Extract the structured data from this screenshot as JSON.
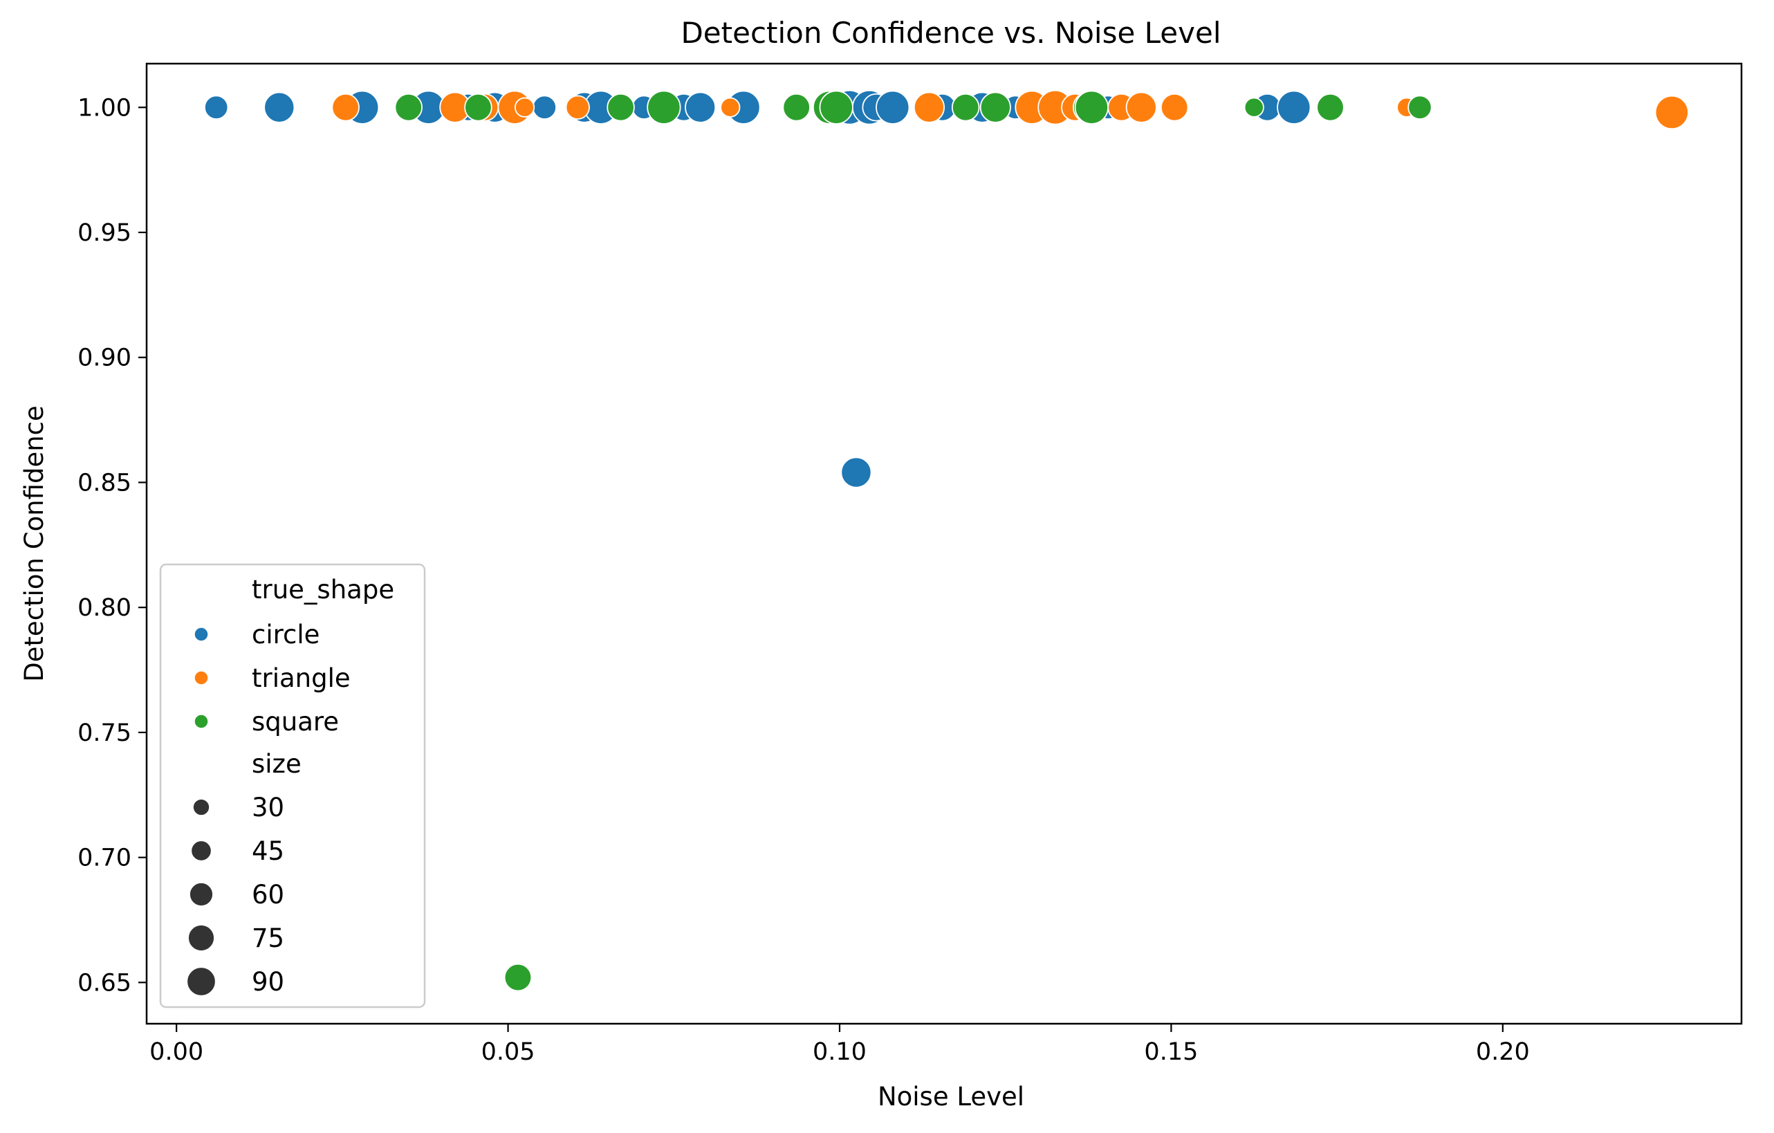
{
  "chart_data": {
    "type": "scatter",
    "title": "Detection Confidence vs. Noise Level",
    "xlabel": "Noise Level",
    "ylabel": "Detection Confidence",
    "xlim": [
      -0.0045,
      0.236
    ],
    "ylim": [
      0.6335,
      1.0175
    ],
    "xticks": [
      0.0,
      0.05,
      0.1,
      0.15,
      0.2
    ],
    "xtick_labels": [
      "0.00",
      "0.05",
      "0.10",
      "0.15",
      "0.20"
    ],
    "yticks": [
      0.65,
      0.7,
      0.75,
      0.8,
      0.85,
      0.9,
      0.95,
      1.0
    ],
    "ytick_labels": [
      "0.65",
      "0.70",
      "0.75",
      "0.80",
      "0.85",
      "0.90",
      "0.95",
      "1.00"
    ],
    "grid": false,
    "legend": {
      "position": "lower-left",
      "hue_title": "true_shape",
      "size_title": "size",
      "hue_entries": [
        "circle",
        "triangle",
        "square"
      ],
      "size_entries": [
        "30",
        "45",
        "60",
        "75",
        "90"
      ],
      "size_values": [
        30,
        45,
        60,
        75,
        90
      ]
    },
    "colors": {
      "circle": "#1f77b4",
      "triangle": "#ff7f0e",
      "square": "#2ca02c"
    },
    "size_range": [
      28,
      95
    ],
    "series": [
      {
        "name": "circle",
        "points": [
          {
            "x": 0.006,
            "y": 1.0,
            "size": 45
          },
          {
            "x": 0.0155,
            "y": 1.0,
            "size": 75
          },
          {
            "x": 0.0275,
            "y": 1.0,
            "size": 75
          },
          {
            "x": 0.028,
            "y": 1.0,
            "size": 90
          },
          {
            "x": 0.038,
            "y": 1.0,
            "size": 90
          },
          {
            "x": 0.044,
            "y": 1.0,
            "size": 60
          },
          {
            "x": 0.048,
            "y": 1.0,
            "size": 75
          },
          {
            "x": 0.0555,
            "y": 1.0,
            "size": 45
          },
          {
            "x": 0.0615,
            "y": 1.0,
            "size": 75
          },
          {
            "x": 0.064,
            "y": 1.0,
            "size": 90
          },
          {
            "x": 0.0705,
            "y": 1.0,
            "size": 45
          },
          {
            "x": 0.0765,
            "y": 1.0,
            "size": 60
          },
          {
            "x": 0.079,
            "y": 1.0,
            "size": 75
          },
          {
            "x": 0.0855,
            "y": 1.0,
            "size": 90
          },
          {
            "x": 0.1015,
            "y": 1.0,
            "size": 95
          },
          {
            "x": 0.1045,
            "y": 1.0,
            "size": 95
          },
          {
            "x": 0.1055,
            "y": 1.0,
            "size": 60
          },
          {
            "x": 0.108,
            "y": 1.0,
            "size": 90
          },
          {
            "x": 0.1155,
            "y": 1.0,
            "size": 60
          },
          {
            "x": 0.1215,
            "y": 1.0,
            "size": 75
          },
          {
            "x": 0.1265,
            "y": 1.0,
            "size": 45
          },
          {
            "x": 0.1405,
            "y": 1.0,
            "size": 45
          },
          {
            "x": 0.1645,
            "y": 1.0,
            "size": 60
          },
          {
            "x": 0.1685,
            "y": 1.0,
            "size": 90
          },
          {
            "x": 0.1025,
            "y": 0.854,
            "size": 75
          }
        ]
      },
      {
        "name": "triangle",
        "points": [
          {
            "x": 0.0255,
            "y": 1.0,
            "size": 60
          },
          {
            "x": 0.042,
            "y": 1.0,
            "size": 75
          },
          {
            "x": 0.0465,
            "y": 1.0,
            "size": 60
          },
          {
            "x": 0.051,
            "y": 1.0,
            "size": 90
          },
          {
            "x": 0.0525,
            "y": 1.0,
            "size": 30
          },
          {
            "x": 0.0605,
            "y": 1.0,
            "size": 45
          },
          {
            "x": 0.0835,
            "y": 1.0,
            "size": 30
          },
          {
            "x": 0.1135,
            "y": 1.0,
            "size": 75
          },
          {
            "x": 0.129,
            "y": 1.0,
            "size": 90
          },
          {
            "x": 0.1325,
            "y": 1.0,
            "size": 95
          },
          {
            "x": 0.1355,
            "y": 1.0,
            "size": 60
          },
          {
            "x": 0.1425,
            "y": 1.0,
            "size": 60
          },
          {
            "x": 0.1455,
            "y": 1.0,
            "size": 75
          },
          {
            "x": 0.1505,
            "y": 1.0,
            "size": 60
          },
          {
            "x": 0.1855,
            "y": 1.0,
            "size": 30
          },
          {
            "x": 0.2255,
            "y": 0.998,
            "size": 90
          }
        ]
      },
      {
        "name": "square",
        "points": [
          {
            "x": 0.035,
            "y": 1.0,
            "size": 60
          },
          {
            "x": 0.0455,
            "y": 1.0,
            "size": 60
          },
          {
            "x": 0.067,
            "y": 1.0,
            "size": 60
          },
          {
            "x": 0.0735,
            "y": 1.0,
            "size": 90
          },
          {
            "x": 0.0935,
            "y": 1.0,
            "size": 60
          },
          {
            "x": 0.0985,
            "y": 1.0,
            "size": 90
          },
          {
            "x": 0.0995,
            "y": 1.0,
            "size": 90
          },
          {
            "x": 0.119,
            "y": 1.0,
            "size": 60
          },
          {
            "x": 0.1235,
            "y": 1.0,
            "size": 75
          },
          {
            "x": 0.1375,
            "y": 1.0,
            "size": 75
          },
          {
            "x": 0.138,
            "y": 1.0,
            "size": 90
          },
          {
            "x": 0.1625,
            "y": 1.0,
            "size": 30
          },
          {
            "x": 0.174,
            "y": 1.0,
            "size": 60
          },
          {
            "x": 0.1875,
            "y": 1.0,
            "size": 45
          },
          {
            "x": 0.0515,
            "y": 0.652,
            "size": 60
          }
        ]
      }
    ]
  }
}
